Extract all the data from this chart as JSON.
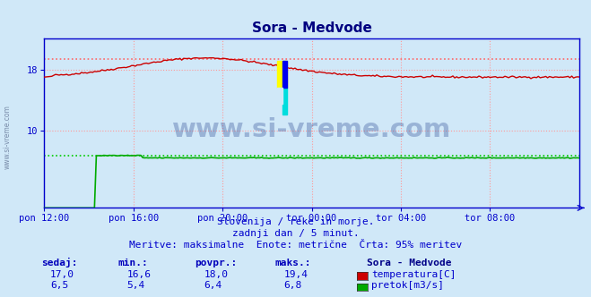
{
  "title": "Sora - Medvode",
  "bg_color": "#d0e8f8",
  "plot_bg_color": "#d0e8f8",
  "grid_color": "#ff9999",
  "axis_color": "#0000cc",
  "title_color": "#000080",
  "text_color": "#0000cc",
  "temp_color": "#cc0000",
  "flow_color": "#00aa00",
  "temp_max_line_color": "#ff6666",
  "flow_max_line_color": "#00cc00",
  "watermark": "www.si-vreme.com",
  "subtitle1": "Slovenija / reke in morje.",
  "subtitle2": "zadnji dan / 5 minut.",
  "subtitle3": "Meritve: maksimalne  Enote: metrične  Črta: 95% meritev",
  "legend_title": "Sora - Medvode",
  "legend_rows": [
    {
      "label": "temperatura[C]",
      "color": "#cc0000"
    },
    {
      "label": "pretok[m3/s]",
      "color": "#00aa00"
    }
  ],
  "stats_headers": [
    "sedaj:",
    "min.:",
    "povpr.:",
    "maks.:"
  ],
  "stats_temp": [
    "17,0",
    "16,6",
    "18,0",
    "19,4"
  ],
  "stats_flow": [
    "6,5",
    "5,4",
    "6,4",
    "6,8"
  ],
  "xtick_labels": [
    "pon 12:00",
    "pon 16:00",
    "pon 20:00",
    "tor 00:00",
    "tor 04:00",
    "tor 08:00"
  ],
  "xtick_positions": [
    0,
    48,
    96,
    144,
    192,
    240
  ],
  "ytick_positions": [
    10,
    18
  ],
  "temp_max_val": 19.4,
  "flow_max_val": 6.8,
  "ymax": 22.0,
  "n_points": 289
}
